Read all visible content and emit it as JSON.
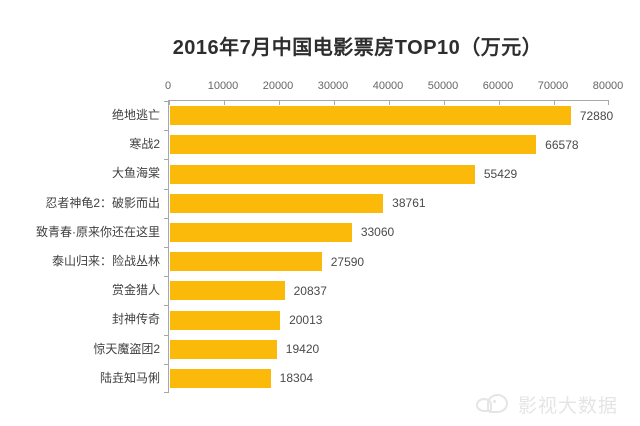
{
  "title": "2016年7月中国电影票房TOP10（万元）",
  "watermark": {
    "text": "影视大数据",
    "icon": "chat-bubbles-logo"
  },
  "colors": {
    "bar": "#FBBA0A",
    "axis": "#A8A8A8",
    "title": "#2E2E2E",
    "category_label": "#3F3F3F",
    "value_label": "#4A4A4A",
    "tick_label": "#666666",
    "watermark": "#E5E5E5"
  },
  "chart_data": {
    "type": "bar",
    "orientation": "horizontal",
    "title": "2016年7月中国电影票房TOP10（万元）",
    "categories": [
      "绝地逃亡",
      "寒战2",
      "大鱼海棠",
      "忍者神龟2：破影而出",
      "致青春·原来你还在这里",
      "泰山归来：险战丛林",
      "赏金猎人",
      "封神传奇",
      "惊天魔盗团2",
      "陆垚知马俐"
    ],
    "values": [
      72880,
      66578,
      55429,
      38761,
      33060,
      27590,
      20837,
      20013,
      19420,
      18304
    ],
    "xlabel": "",
    "ylabel": "",
    "xlim": [
      0,
      80000
    ],
    "x_ticks": [
      0,
      10000,
      20000,
      30000,
      40000,
      50000,
      60000,
      70000,
      80000
    ],
    "axis_position": "top",
    "grid": false,
    "data_labels": true,
    "legend": "none"
  }
}
